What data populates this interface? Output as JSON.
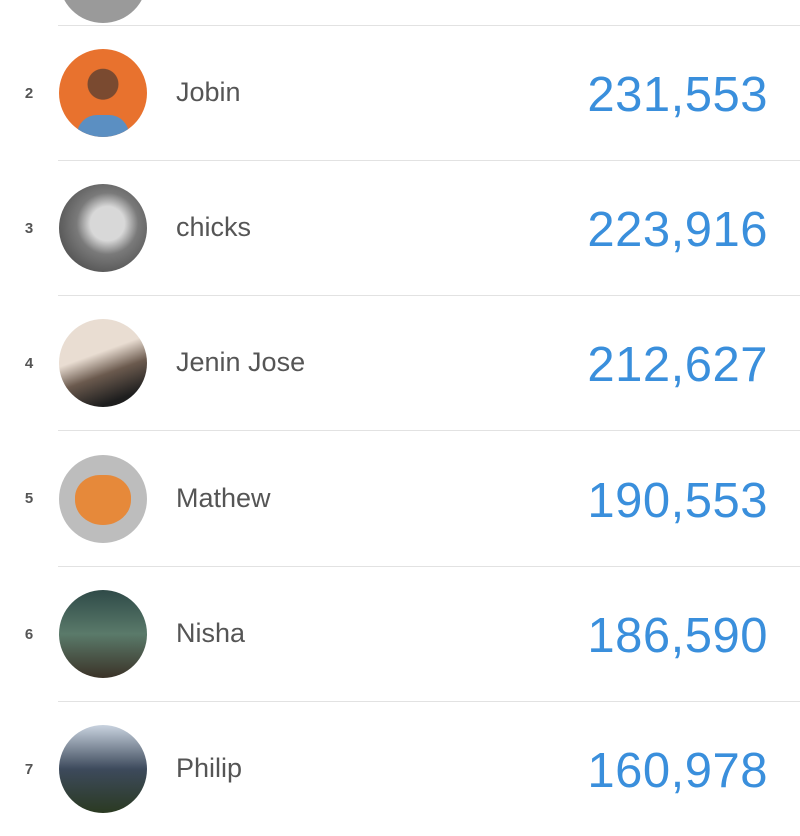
{
  "leaderboard": [
    {
      "rank": "2",
      "name": "Jobin",
      "score": "231,553",
      "avatar_color": "#e8722e"
    },
    {
      "rank": "3",
      "name": "chicks",
      "score": "223,916",
      "avatar_color": "#8a8a8a"
    },
    {
      "rank": "4",
      "name": "Jenin Jose",
      "score": "212,627",
      "avatar_color": "#6b5a4e"
    },
    {
      "rank": "5",
      "name": "Mathew",
      "score": "190,553",
      "avatar_color": "#bdbdbd"
    },
    {
      "rank": "6",
      "name": "Nisha",
      "score": "186,590",
      "avatar_color": "#3e5a52"
    },
    {
      "rank": "7",
      "name": "Philip",
      "score": "160,978",
      "avatar_color": "#3d4a5c"
    }
  ],
  "colors": {
    "score": "#3a8fdc",
    "name": "#555555",
    "divider": "#e2e2e2"
  }
}
